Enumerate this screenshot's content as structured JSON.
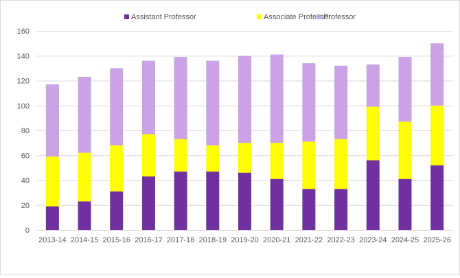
{
  "chart_data": {
    "type": "bar",
    "stacked": true,
    "title": "",
    "xlabel": "",
    "ylabel": "",
    "ylim": [
      0,
      160
    ],
    "yticks": [
      0,
      20,
      40,
      60,
      80,
      100,
      120,
      140,
      160
    ],
    "grid": true,
    "legend_position": "top",
    "categories": [
      "2013-14",
      "2014-15",
      "2015-16",
      "2016-17",
      "2017-18",
      "2018-19",
      "2019-20",
      "2020-21",
      "2021-22",
      "2022-23",
      "2023-24",
      "2024-25",
      "2025-26"
    ],
    "series": [
      {
        "name": "Assistant Professor",
        "color": "#7030A0",
        "values": [
          19,
          23,
          31,
          43,
          47,
          47,
          46,
          41,
          33,
          33,
          56,
          41,
          52
        ]
      },
      {
        "name": "Associate Professor",
        "color": "#FFFF00",
        "values": [
          40,
          39,
          37,
          34,
          26,
          21,
          24,
          29,
          38,
          40,
          43,
          46,
          48
        ]
      },
      {
        "name": "Professor",
        "color": "#C9A3E3",
        "values": [
          58,
          61,
          62,
          59,
          66,
          68,
          70,
          71,
          63,
          59,
          34,
          52,
          50
        ]
      }
    ]
  }
}
